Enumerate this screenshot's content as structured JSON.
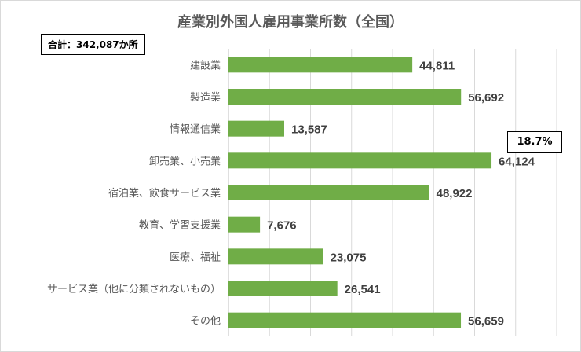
{
  "chart_data": {
    "type": "bar",
    "orientation": "horizontal",
    "title": "産業別外国人雇用事業所数（全国）",
    "total_label": "合計：342,087か所",
    "callout": "18.7%",
    "categories": [
      "建設業",
      "製造業",
      "情報通信業",
      "卸売業、小売業",
      "宿泊業、飲食サービス業",
      "教育、学習支援業",
      "医療、福祉",
      "サービス業（他に分類されないもの）",
      "その他"
    ],
    "values": [
      44811,
      56692,
      13587,
      64124,
      48922,
      7676,
      23075,
      26541,
      56659
    ],
    "data_labels": [
      "44,811",
      "56,692",
      "13,587",
      "64,124",
      "48,922",
      "7,676",
      "23,075",
      "26,541",
      "56,659"
    ],
    "xlim": [
      0,
      80000
    ],
    "grid": true,
    "legend": "none",
    "colors": {
      "bar": "#70ad47",
      "grid": "#d9d9d9",
      "axis": "#bfbfbf",
      "label": "#595959",
      "value": "#404040"
    }
  }
}
